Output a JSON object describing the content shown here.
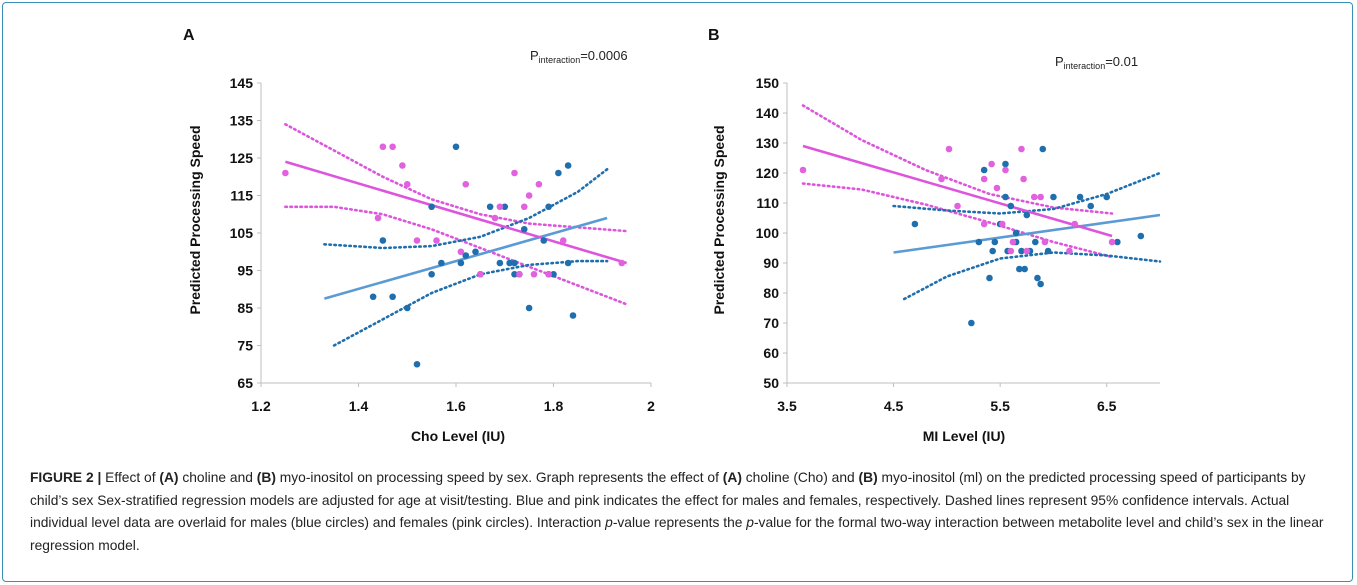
{
  "colors": {
    "male": "#1f6fae",
    "female": "#e261de",
    "male_fit": "#5b9bd5",
    "female_fit": "#dd55dd",
    "frame": "#3a8fb7"
  },
  "chart_data": [
    {
      "type": "scatter",
      "panel_label": "A",
      "annotation_prefix": "P",
      "annotation_subscript": "interaction",
      "annotation_value": "=0.0006",
      "xlabel": "Cho Level (IU)",
      "ylabel": "Predicted Processing Speed",
      "xlim": [
        1.2,
        2
      ],
      "ylim": [
        65,
        145
      ],
      "x_ticks": [
        1.2,
        1.4,
        1.6,
        1.8,
        2
      ],
      "x_tick_labels": [
        "1.2",
        "1.4",
        "1.6",
        "1.8",
        "2"
      ],
      "y_ticks": [
        65,
        75,
        85,
        95,
        105,
        115,
        125,
        135,
        145
      ],
      "y_tick_labels": [
        "65",
        "75",
        "85",
        "95",
        "105",
        "115",
        "125",
        "135",
        "145"
      ],
      "grid": false,
      "males": [
        [
          1.43,
          88
        ],
        [
          1.45,
          103
        ],
        [
          1.47,
          88
        ],
        [
          1.5,
          85
        ],
        [
          1.52,
          70
        ],
        [
          1.55,
          94
        ],
        [
          1.55,
          112
        ],
        [
          1.57,
          97
        ],
        [
          1.6,
          128
        ],
        [
          1.61,
          97
        ],
        [
          1.62,
          99
        ],
        [
          1.64,
          100
        ],
        [
          1.65,
          94
        ],
        [
          1.67,
          112
        ],
        [
          1.69,
          97
        ],
        [
          1.7,
          112
        ],
        [
          1.71,
          97
        ],
        [
          1.72,
          97
        ],
        [
          1.72,
          94
        ],
        [
          1.73,
          94
        ],
        [
          1.74,
          106
        ],
        [
          1.75,
          85
        ],
        [
          1.78,
          103
        ],
        [
          1.79,
          94
        ],
        [
          1.79,
          112
        ],
        [
          1.8,
          94
        ],
        [
          1.81,
          121
        ],
        [
          1.83,
          97
        ],
        [
          1.83,
          123
        ],
        [
          1.84,
          83
        ]
      ],
      "females": [
        [
          1.25,
          121
        ],
        [
          1.44,
          109
        ],
        [
          1.45,
          128
        ],
        [
          1.47,
          128
        ],
        [
          1.49,
          123
        ],
        [
          1.5,
          118
        ],
        [
          1.52,
          103
        ],
        [
          1.56,
          103
        ],
        [
          1.61,
          100
        ],
        [
          1.62,
          118
        ],
        [
          1.65,
          94
        ],
        [
          1.68,
          109
        ],
        [
          1.69,
          112
        ],
        [
          1.72,
          121
        ],
        [
          1.73,
          94
        ],
        [
          1.74,
          112
        ],
        [
          1.75,
          115
        ],
        [
          1.76,
          94
        ],
        [
          1.77,
          118
        ],
        [
          1.79,
          94
        ],
        [
          1.82,
          103
        ],
        [
          1.94,
          97
        ]
      ],
      "male_fit": [
        [
          1.33,
          87.5
        ],
        [
          1.91,
          109
        ]
      ],
      "male_ci_upper": [
        [
          1.33,
          102
        ],
        [
          1.45,
          101
        ],
        [
          1.55,
          101.5
        ],
        [
          1.65,
          104
        ],
        [
          1.75,
          109
        ],
        [
          1.85,
          116
        ],
        [
          1.91,
          122
        ]
      ],
      "male_ci_lower": [
        [
          1.35,
          75
        ],
        [
          1.45,
          82
        ],
        [
          1.55,
          89
        ],
        [
          1.65,
          94
        ],
        [
          1.75,
          96.5
        ],
        [
          1.85,
          97.5
        ],
        [
          1.91,
          97.5
        ]
      ],
      "female_fit": [
        [
          1.25,
          124
        ],
        [
          1.95,
          97
        ]
      ],
      "female_ci_upper": [
        [
          1.25,
          134
        ],
        [
          1.35,
          127
        ],
        [
          1.45,
          120
        ],
        [
          1.55,
          114
        ],
        [
          1.65,
          110
        ],
        [
          1.75,
          107.5
        ],
        [
          1.85,
          106.5
        ],
        [
          1.95,
          105.5
        ]
      ],
      "female_ci_lower": [
        [
          1.25,
          112
        ],
        [
          1.35,
          112
        ],
        [
          1.45,
          110
        ],
        [
          1.55,
          106
        ],
        [
          1.65,
          101
        ],
        [
          1.75,
          96
        ],
        [
          1.85,
          91
        ],
        [
          1.95,
          86
        ]
      ]
    },
    {
      "type": "scatter",
      "panel_label": "B",
      "annotation_prefix": "P",
      "annotation_subscript": "interaction",
      "annotation_value": "=0.01",
      "xlabel": "MI Level (IU)",
      "ylabel": "Predicted Processing Speed",
      "xlim": [
        3.5,
        7
      ],
      "ylim": [
        50,
        150
      ],
      "x_ticks": [
        3.5,
        4.5,
        5.5,
        6.5
      ],
      "x_tick_labels": [
        "3.5",
        "4.5",
        "5.5",
        "6.5"
      ],
      "y_ticks": [
        50,
        60,
        70,
        80,
        90,
        100,
        110,
        120,
        130,
        140,
        150
      ],
      "y_tick_labels": [
        "50",
        "60",
        "70",
        "80",
        "90",
        "100",
        "110",
        "120",
        "130",
        "140",
        "150"
      ],
      "grid": false,
      "males": [
        [
          4.7,
          103
        ],
        [
          5.23,
          70
        ],
        [
          5.3,
          97
        ],
        [
          5.35,
          121
        ],
        [
          5.4,
          85
        ],
        [
          5.43,
          94
        ],
        [
          5.45,
          97
        ],
        [
          5.5,
          103
        ],
        [
          5.55,
          123
        ],
        [
          5.55,
          112
        ],
        [
          5.57,
          94
        ],
        [
          5.6,
          109
        ],
        [
          5.65,
          100
        ],
        [
          5.65,
          97
        ],
        [
          5.68,
          88
        ],
        [
          5.7,
          94
        ],
        [
          5.73,
          88
        ],
        [
          5.75,
          106
        ],
        [
          5.78,
          94
        ],
        [
          5.83,
          97
        ],
        [
          5.85,
          85
        ],
        [
          5.88,
          83
        ],
        [
          5.9,
          128
        ],
        [
          5.95,
          94
        ],
        [
          6.0,
          112
        ],
        [
          6.25,
          112
        ],
        [
          6.35,
          109
        ],
        [
          6.5,
          112
        ],
        [
          6.6,
          97
        ],
        [
          6.82,
          99
        ]
      ],
      "females": [
        [
          3.65,
          121
        ],
        [
          4.95,
          118
        ],
        [
          5.02,
          128
        ],
        [
          5.1,
          109
        ],
        [
          5.35,
          118
        ],
        [
          5.35,
          103
        ],
        [
          5.42,
          123
        ],
        [
          5.47,
          115
        ],
        [
          5.52,
          103
        ],
        [
          5.55,
          121
        ],
        [
          5.6,
          94
        ],
        [
          5.62,
          97
        ],
        [
          5.7,
          128
        ],
        [
          5.72,
          118
        ],
        [
          5.75,
          94
        ],
        [
          5.82,
          112
        ],
        [
          5.88,
          112
        ],
        [
          5.92,
          97
        ],
        [
          6.15,
          94
        ],
        [
          6.2,
          103
        ],
        [
          6.55,
          97
        ]
      ],
      "male_fit": [
        [
          4.5,
          93.5
        ],
        [
          7.0,
          106
        ]
      ],
      "male_ci_upper": [
        [
          4.5,
          109
        ],
        [
          5.0,
          107.5
        ],
        [
          5.5,
          106.5
        ],
        [
          6.0,
          108
        ],
        [
          6.5,
          113
        ],
        [
          7.0,
          120
        ]
      ],
      "male_ci_lower": [
        [
          4.6,
          78
        ],
        [
          5.0,
          85.5
        ],
        [
          5.5,
          91.5
        ],
        [
          6.0,
          93.5
        ],
        [
          6.5,
          92.5
        ],
        [
          7.0,
          90.5
        ]
      ],
      "female_fit": [
        [
          3.65,
          129
        ],
        [
          6.55,
          99
        ]
      ],
      "female_ci_upper": [
        [
          3.65,
          142.5
        ],
        [
          4.2,
          131
        ],
        [
          4.8,
          121
        ],
        [
          5.4,
          113
        ],
        [
          6.0,
          108.5
        ],
        [
          6.55,
          106.5
        ]
      ],
      "female_ci_lower": [
        [
          3.65,
          116.5
        ],
        [
          4.2,
          114.5
        ],
        [
          4.8,
          109.5
        ],
        [
          5.4,
          103.5
        ],
        [
          6.0,
          97
        ],
        [
          6.55,
          92
        ]
      ]
    }
  ],
  "caption": {
    "figure_label": "FIGURE 2 |",
    "part1": " Effect of ",
    "a1": "(A)",
    "part2": " choline and ",
    "b1": "(B)",
    "part3": " myo-inositol on processing speed by sex. Graph represents the effect of ",
    "a2": "(A)",
    "part4": " choline (Cho) and ",
    "b2": "(B)",
    "part5": " myo-inositol (ml) on the predicted processing speed of participants by child’s sex Sex-stratified regression models are adjusted for age at visit/testing. Blue and pink indicates the effect for males and females, respectively. Dashed lines represent 95% confidence intervals. Actual individual level data are overlaid for males (blue circles) and females (pink circles). Interaction ",
    "p1": "p",
    "part6": "-value represents the ",
    "p2": "p",
    "part7": "-value for the formal two-way interaction between metabolite level and child’s sex in the linear regression model."
  }
}
